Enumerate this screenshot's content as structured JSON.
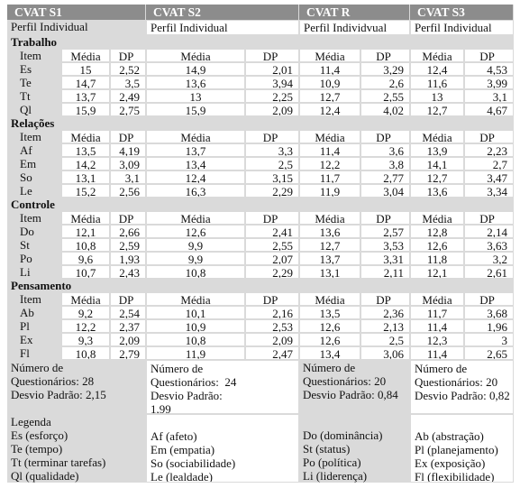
{
  "headers": [
    "CVAT S1",
    "CVAT S2",
    "CVAT R",
    "CVAT S3"
  ],
  "profile": [
    "Perfil Individual",
    "Perfil Individual",
    "Perfil Individvual",
    "Perfil Individual"
  ],
  "sections": [
    {
      "title": "Trabalho",
      "columns": [
        "Item",
        "Média",
        "DP",
        "Média",
        "DP",
        "Média",
        "DP",
        "Média",
        "DP"
      ],
      "rows": [
        [
          "Es",
          "15",
          "2,52",
          "14,9",
          "2,01",
          "11,4",
          "3,29",
          "12,4",
          "4,53"
        ],
        [
          "Te",
          "14,7",
          "3,5",
          "13,6",
          "3,94",
          "10,9",
          "2,6",
          "11,6",
          "3,99"
        ],
        [
          "Tt",
          "13,7",
          "2,49",
          "13",
          "2,25",
          "12,7",
          "2,55",
          "13",
          "3,1"
        ],
        [
          "Ql",
          "15,9",
          "2,75",
          "15,9",
          "2,09",
          "12,4",
          "4,02",
          "12,7",
          "4,67"
        ]
      ]
    },
    {
      "title": "Relações",
      "columns": [
        "Item",
        "Média",
        "DP",
        "Média",
        "DP",
        "Média",
        "DP",
        "Média",
        "DP"
      ],
      "rows": [
        [
          "Af",
          "13,5",
          "4,19",
          "13,7",
          "3,3",
          "11,4",
          "3,6",
          "13,9",
          "2,23"
        ],
        [
          "Em",
          "14,2",
          "3,09",
          "13,4",
          "2,5",
          "12,2",
          "3,8",
          "14,1",
          "2,7"
        ],
        [
          "So",
          "13,1",
          "3,1",
          "12,4",
          "3,15",
          "11,7",
          "2,77",
          "12,7",
          "3,47"
        ],
        [
          "Le",
          "15,2",
          "2,56",
          "16,3",
          "2,29",
          "11,9",
          "3,04",
          "13,6",
          "3,34"
        ]
      ]
    },
    {
      "title": "Controle",
      "columns": [
        "Item",
        "Média",
        "DP",
        "Média",
        "DP",
        "Média",
        "DP",
        "Média",
        "DP"
      ],
      "rows": [
        [
          "Do",
          "12,1",
          "2,66",
          "12,6",
          "2,41",
          "13,6",
          "2,57",
          "12,8",
          "2,14"
        ],
        [
          "St",
          "10,8",
          "2,59",
          "9,9",
          "2,55",
          "12,7",
          "3,53",
          "12,6",
          "3,63"
        ],
        [
          "Po",
          "9,6",
          "1,93",
          "9,9",
          "2,07",
          "13,7",
          "3,31",
          "11,8",
          "3,2"
        ],
        [
          "Li",
          "10,7",
          "2,43",
          "10,8",
          "2,29",
          "13,1",
          "2,11",
          "12,1",
          "2,61"
        ]
      ]
    },
    {
      "title": "Pensamento",
      "columns": [
        "Item",
        "Média",
        "DP",
        "Média",
        "DP",
        "Média",
        "DP",
        "Média",
        "DP"
      ],
      "rows": [
        [
          "Ab",
          "9,2",
          "2,54",
          "10,1",
          "2,16",
          "13,5",
          "2,36",
          "11,7",
          "3,68"
        ],
        [
          "Pl",
          "12,2",
          "2,37",
          "10,9",
          "2,53",
          "12,6",
          "2,13",
          "11,4",
          "1,96"
        ],
        [
          "Ex",
          "9,3",
          "2,09",
          "10,8",
          "2,09",
          "12,6",
          "2,5",
          "12,3",
          "3"
        ],
        [
          "Fl",
          "10,8",
          "2,79",
          "11,9",
          "2,47",
          "13,4",
          "3,06",
          "11,4",
          "2,65"
        ]
      ]
    }
  ],
  "summary": [
    [
      "Número de",
      "Questionários: 28",
      "Desvio Padrão: 2,15"
    ],
    [
      "Número de",
      "Questionários:  24",
      "Desvio Padrão:",
      "1,99"
    ],
    [
      "Número de",
      "Questionários: 20",
      "Desvio Padrão: 0,84"
    ],
    [
      "Número de",
      "Questionários: 20",
      "Desvio Padrão: 0,82"
    ]
  ],
  "legend": {
    "title": "Legenda",
    "columns": [
      [
        "Es (esforço)",
        "Te (tempo)",
        "Tt (terminar tarefas)",
        "Ql (qualidade)"
      ],
      [
        "Af (afeto)",
        "Em (empatia)",
        "So (sociabilidade)",
        "Le (lealdade)"
      ],
      [
        "Do (dominância)",
        "St (status)",
        "Po (política)",
        "Li (liderença)"
      ],
      [
        "Ab (abstração)",
        "Pl (planejamento)",
        "Ex (exposição)",
        "Fl (flexibilidade)"
      ]
    ]
  }
}
